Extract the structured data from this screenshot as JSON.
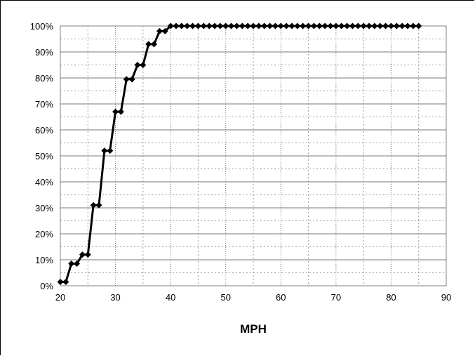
{
  "chart_data": {
    "type": "line",
    "title": "",
    "xlabel": "MPH",
    "ylabel": "",
    "xlim": [
      20,
      90
    ],
    "ylim": [
      0,
      100
    ],
    "x_ticks": [
      20,
      30,
      40,
      50,
      60,
      70,
      80,
      90
    ],
    "y_ticks": [
      0,
      10,
      20,
      30,
      40,
      50,
      60,
      70,
      80,
      90,
      100
    ],
    "y_tick_format": "percent",
    "grid": true,
    "legend": "none",
    "series": [
      {
        "color": "#000000",
        "marker": "diamond",
        "x": [
          20,
          21,
          22,
          23,
          24,
          25,
          26,
          27,
          28,
          29,
          30,
          31,
          32,
          33,
          34,
          35,
          36,
          37,
          38,
          39,
          40,
          41,
          42,
          43,
          44,
          45,
          46,
          47,
          48,
          49,
          50,
          51,
          52,
          53,
          54,
          55,
          56,
          57,
          58,
          59,
          60,
          61,
          62,
          63,
          64,
          65,
          66,
          67,
          68,
          69,
          70,
          71,
          72,
          73,
          74,
          75,
          76,
          77,
          78,
          79,
          80,
          81,
          82,
          83,
          84,
          85
        ],
        "y": [
          1.5,
          1.5,
          8.5,
          8.5,
          12,
          12,
          31,
          31,
          52,
          52,
          67,
          67,
          79.5,
          79.5,
          85,
          85,
          93,
          93,
          98,
          98,
          100,
          100,
          100,
          100,
          100,
          100,
          100,
          100,
          100,
          100,
          100,
          100,
          100,
          100,
          100,
          100,
          100,
          100,
          100,
          100,
          100,
          100,
          100,
          100,
          100,
          100,
          100,
          100,
          100,
          100,
          100,
          100,
          100,
          100,
          100,
          100,
          100,
          100,
          100,
          100,
          100,
          100,
          100,
          100,
          100,
          100
        ]
      }
    ]
  }
}
